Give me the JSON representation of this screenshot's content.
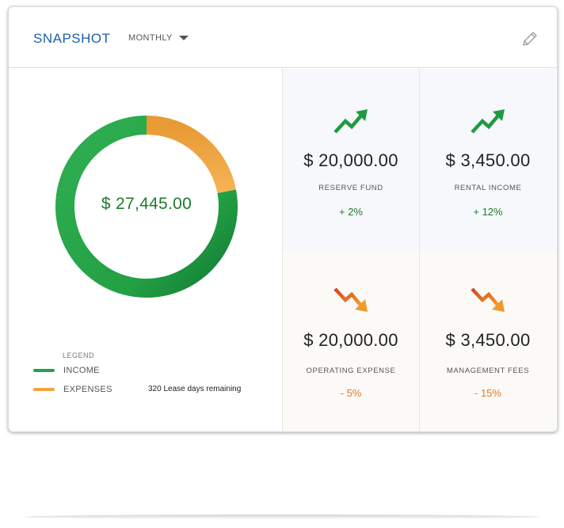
{
  "header": {
    "title": "SNAPSHOT",
    "period": "MONTHLY",
    "edit_icon": "pencil-icon"
  },
  "summary": {
    "total": "$ 27,445.00",
    "income_fraction": 0.78,
    "expenses_fraction": 0.22
  },
  "legend": {
    "title": "LEGEND",
    "items": [
      {
        "label": "INCOME",
        "color": "#25a248"
      },
      {
        "label": "EXPENSES",
        "color": "#f3a23f"
      }
    ]
  },
  "lease": "320 Lease days remaining",
  "tiles": [
    {
      "amount": "$ 20,000.00",
      "label": "RESERVE FUND",
      "change": "+ 2%",
      "trend": "up",
      "icon": "trend-up-icon"
    },
    {
      "amount": "$ 3,450.00",
      "label": "RENTAL INCOME",
      "change": "+ 12%",
      "trend": "up",
      "icon": "trend-up-icon"
    },
    {
      "amount": "$ 20,000.00",
      "label": "OPERATING EXPENSE",
      "change": "- 5%",
      "trend": "down",
      "icon": "trend-down-icon"
    },
    {
      "amount": "$ 3,450.00",
      "label": "MANAGEMENT FEES",
      "change": "- 15%",
      "trend": "down",
      "icon": "trend-down-icon"
    }
  ],
  "colors": {
    "brand": "#1f5fa8",
    "positive": "#1e7b2e",
    "negative": "#e37b22",
    "income": "#25a248",
    "expenses": "#f3a23f"
  }
}
